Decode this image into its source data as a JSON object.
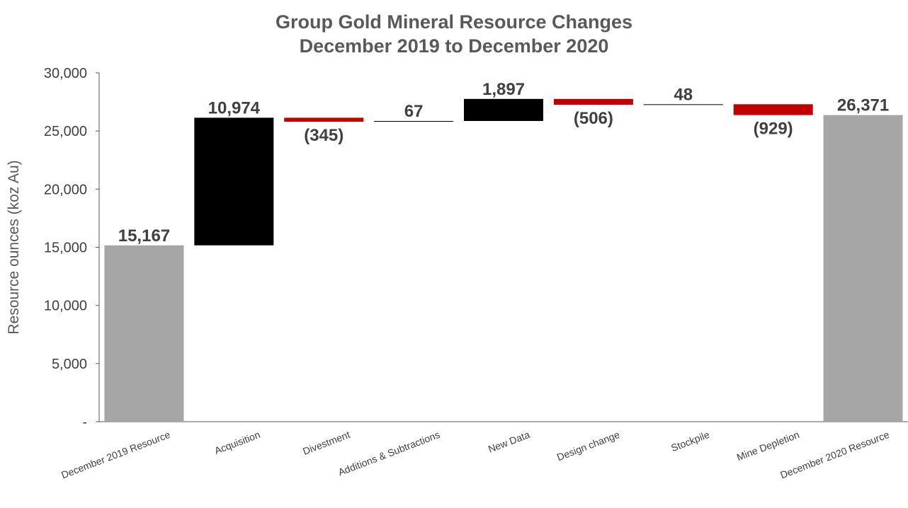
{
  "chart_data": {
    "type": "bar",
    "subtype": "waterfall",
    "title": "Group Gold Mineral Resource Changes",
    "subtitle": "December 2019 to December 2020",
    "ylabel": "Resource ounces (koz Au)",
    "xlabel": "",
    "ylim": [
      0,
      30000
    ],
    "yticks": [
      {
        "value": 0,
        "label": "-"
      },
      {
        "value": 5000,
        "label": "5,000"
      },
      {
        "value": 10000,
        "label": "10,000"
      },
      {
        "value": 15000,
        "label": "15,000"
      },
      {
        "value": 20000,
        "label": "20,000"
      },
      {
        "value": 25000,
        "label": "25,000"
      },
      {
        "value": 30000,
        "label": "30,000"
      }
    ],
    "grid": false,
    "legend": "none",
    "categories": [
      "December 2019 Resource",
      "Acquisition",
      "Divestment",
      "Additions & Subtractions",
      "New Data",
      "Design change",
      "Stockpile",
      "Mine Depletion",
      "December 2020 Resource"
    ],
    "values": [
      15167,
      10974,
      -345,
      67,
      1897,
      -506,
      48,
      -929,
      26371
    ],
    "kinds": [
      "total",
      "increase",
      "decrease",
      "increase",
      "increase",
      "decrease",
      "increase",
      "decrease",
      "total"
    ],
    "data_labels": [
      "15,167",
      "10,974",
      "(345)",
      "67",
      "1,897",
      "(506)",
      "48",
      "(929)",
      "26,371"
    ],
    "colors": {
      "total": "#A6A6A6",
      "increase": "#000000",
      "decrease": "#C00000",
      "text": "#404040",
      "title": "#595959",
      "axis": "#595959"
    }
  }
}
